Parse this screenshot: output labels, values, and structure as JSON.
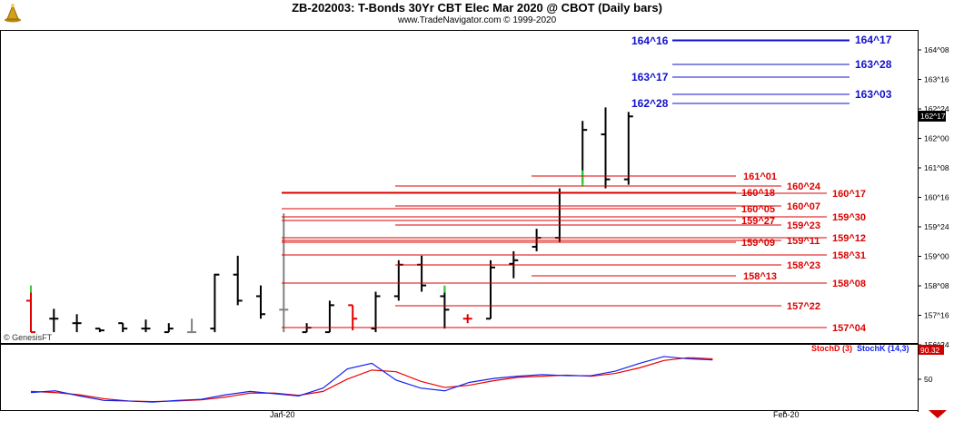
{
  "header": {
    "title": "ZB-202003:  T-Bonds 30Yr CBT Elec Mar 2020 @ CBOT  (Daily bars)",
    "subtitle": "www.TradeNavigator.com © 1999-2020",
    "watermark": "© GenesisFT",
    "logo_icon": "trading-navigator-logo",
    "scroll_icon": "scroll-right-arrow-icon"
  },
  "colors": {
    "bar": "#000000",
    "grey_bar": "#808080",
    "red": "#e00000",
    "green": "#33cc33",
    "blue": "#0000cc",
    "level_red": "#dd0000",
    "level_blue": "#1010cc",
    "stoch_d": "#ee0000",
    "stoch_k": "#1122ee"
  },
  "chart_data": {
    "type": "bar",
    "symbol": "ZB-202003",
    "price_axis_ticks": [
      "164^08",
      "163^16",
      "162^24",
      "162^00",
      "161^08",
      "160^16",
      "159^24",
      "159^00",
      "158^08",
      "157^16",
      "156^24"
    ],
    "current_price": "162^17",
    "x_axis_labels": [
      "Jan-20",
      "Feb-20"
    ],
    "bars": [
      {
        "o": 157.375,
        "h": 157.625,
        "l": 156.5,
        "c": 156.5,
        "color": "red"
      },
      {
        "o": 156.875,
        "h": 157.15,
        "l": 156.5,
        "c": 156.875,
        "color": "black"
      },
      {
        "o": 156.75,
        "h": 157.0,
        "l": 156.5,
        "c": 156.75,
        "color": "black"
      },
      {
        "o": 156.6,
        "h": 156.6,
        "l": 156.5,
        "c": 156.55,
        "color": "black"
      },
      {
        "o": 156.75,
        "h": 156.75,
        "l": 156.5,
        "c": 156.6,
        "color": "black"
      },
      {
        "o": 156.6,
        "h": 156.85,
        "l": 156.5,
        "c": 156.6,
        "color": "black"
      },
      {
        "o": 156.5,
        "h": 156.75,
        "l": 156.5,
        "c": 156.6,
        "color": "black"
      },
      {
        "o": 156.5,
        "h": 156.875,
        "l": 156.5,
        "c": 156.5,
        "color": "grey"
      },
      {
        "o": 156.6,
        "h": 158.125,
        "l": 156.5,
        "c": 158.1,
        "color": "black"
      },
      {
        "o": 158.1,
        "h": 158.625,
        "l": 157.25,
        "c": 157.375,
        "color": "black"
      },
      {
        "o": 157.5,
        "h": 157.8,
        "l": 156.875,
        "c": 157.0,
        "color": "black"
      },
      {
        "o": 157.125,
        "h": 159.8,
        "l": 156.5,
        "c": 157.125,
        "color": "grey"
      },
      {
        "o": 156.5,
        "h": 156.75,
        "l": 156.5,
        "c": 156.625,
        "color": "black"
      },
      {
        "o": 156.5,
        "h": 157.375,
        "l": 156.5,
        "c": 157.25,
        "color": "black"
      },
      {
        "o": 157.25,
        "h": 157.25,
        "l": 156.55,
        "c": 156.875,
        "color": "red"
      },
      {
        "o": 156.6,
        "h": 157.625,
        "l": 156.5,
        "c": 157.5,
        "color": "black"
      },
      {
        "o": 157.5,
        "h": 158.5,
        "l": 157.375,
        "c": 158.375,
        "color": "black"
      },
      {
        "o": 158.375,
        "h": 158.625,
        "l": 157.625,
        "c": 157.8,
        "color": "black"
      },
      {
        "o": 157.5,
        "h": 157.75,
        "l": 156.6,
        "c": 157.125,
        "color": "black"
      },
      {
        "o": 156.875,
        "h": 157.0,
        "l": 156.75,
        "c": 156.875,
        "color": "red"
      },
      {
        "o": 156.875,
        "h": 158.5,
        "l": 156.875,
        "c": 158.3,
        "color": "black"
      },
      {
        "o": 158.4,
        "h": 158.75,
        "l": 158.0,
        "c": 158.5,
        "color": "black"
      },
      {
        "o": 158.875,
        "h": 159.375,
        "l": 158.75,
        "c": 159.125,
        "color": "black"
      },
      {
        "o": 159.125,
        "h": 160.5,
        "l": 159.0,
        "c": 160.375,
        "color": "black"
      },
      {
        "o": 160.375,
        "h": 162.375,
        "l": 160.625,
        "c": 162.125,
        "color": "black"
      },
      {
        "o": 162.0,
        "h": 162.75,
        "l": 160.5,
        "c": 160.75,
        "color": "black"
      },
      {
        "o": 160.75,
        "h": 162.625,
        "l": 160.6,
        "c": 162.5,
        "color": "black"
      }
    ],
    "levels_red": [
      {
        "label": "161^01",
        "price": 161.03
      },
      {
        "label": "160^24",
        "price": 160.75
      },
      {
        "label": "160^18",
        "price": 160.56
      },
      {
        "label": "160^17",
        "price": 160.53
      },
      {
        "label": "160^07",
        "price": 160.22
      },
      {
        "label": "160^05",
        "price": 160.16
      },
      {
        "label": "159^30",
        "price": 159.94
      },
      {
        "label": "159^27",
        "price": 159.84
      },
      {
        "label": "159^23",
        "price": 159.72
      },
      {
        "label": "159^12",
        "price": 159.38
      },
      {
        "label": "159^11",
        "price": 159.34
      },
      {
        "label": "159^09",
        "price": 159.28
      },
      {
        "label": "158^31",
        "price": 158.97
      },
      {
        "label": "158^23",
        "price": 158.72
      },
      {
        "label": "158^13",
        "price": 158.41
      },
      {
        "label": "158^08",
        "price": 158.25
      },
      {
        "label": "157^22",
        "price": 157.69
      },
      {
        "label": "157^04",
        "price": 157.13
      }
    ],
    "levels_blue": [
      {
        "label": "164^17",
        "price": 164.53
      },
      {
        "label": "164^16",
        "price": 164.5
      },
      {
        "label": "163^28",
        "price": 163.88
      },
      {
        "label": "163^17",
        "price": 163.53
      },
      {
        "label": "163^03",
        "price": 163.09
      },
      {
        "label": "162^28",
        "price": 162.88
      }
    ],
    "stochastic": {
      "label_d": "StochD (3)",
      "label_k": "StochK (14,3)",
      "value": "90.32",
      "axis_tick": "50",
      "k": [
        28,
        31,
        22,
        14,
        13,
        11,
        14,
        16,
        24,
        30,
        26,
        22,
        36,
        70,
        80,
        50,
        36,
        31,
        46,
        53,
        57,
        60,
        58,
        58,
        66,
        80,
        92,
        88,
        86
      ],
      "d": [
        30,
        28,
        24,
        17,
        13,
        12,
        13,
        15,
        20,
        27,
        27,
        23,
        30,
        52,
        68,
        65,
        48,
        37,
        41,
        49,
        55,
        57,
        59,
        57,
        62,
        72,
        85,
        90,
        88
      ]
    }
  }
}
